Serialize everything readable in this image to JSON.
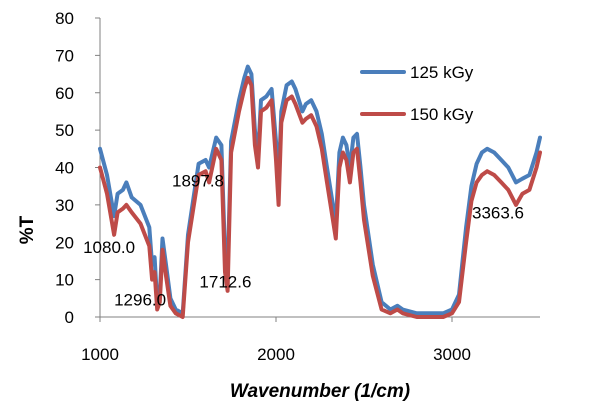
{
  "chart_data": {
    "type": "line",
    "title": "",
    "xlabel": "Wavenumber (1/cm)",
    "ylabel": "%T",
    "xlim": [
      1000,
      3500
    ],
    "ylim": [
      0,
      80
    ],
    "xticks": [
      1000,
      2000,
      3000
    ],
    "yticks": [
      0,
      10,
      20,
      30,
      40,
      50,
      60,
      70,
      80
    ],
    "grid": false,
    "legend_position": "top-right",
    "series": [
      {
        "name": "125 kGy",
        "color": "#4a7ebb",
        "points": [
          [
            1000,
            45
          ],
          [
            1040,
            38
          ],
          [
            1080,
            27
          ],
          [
            1100,
            33
          ],
          [
            1130,
            34
          ],
          [
            1150,
            36
          ],
          [
            1180,
            32
          ],
          [
            1230,
            30
          ],
          [
            1280,
            24
          ],
          [
            1296,
            14
          ],
          [
            1310,
            16
          ],
          [
            1325,
            4
          ],
          [
            1340,
            6
          ],
          [
            1355,
            21
          ],
          [
            1375,
            14
          ],
          [
            1400,
            5
          ],
          [
            1430,
            2
          ],
          [
            1470,
            1
          ],
          [
            1500,
            22
          ],
          [
            1560,
            41
          ],
          [
            1600,
            42
          ],
          [
            1620,
            40
          ],
          [
            1660,
            48
          ],
          [
            1690,
            46
          ],
          [
            1710,
            17
          ],
          [
            1725,
            12
          ],
          [
            1745,
            47
          ],
          [
            1790,
            58
          ],
          [
            1820,
            64
          ],
          [
            1840,
            67
          ],
          [
            1860,
            65
          ],
          [
            1880,
            50
          ],
          [
            1897.8,
            43
          ],
          [
            1915,
            58
          ],
          [
            1945,
            59
          ],
          [
            1975,
            61
          ],
          [
            2000,
            47
          ],
          [
            2015,
            36
          ],
          [
            2030,
            55
          ],
          [
            2060,
            62
          ],
          [
            2090,
            63
          ],
          [
            2110,
            61
          ],
          [
            2150,
            55
          ],
          [
            2170,
            57
          ],
          [
            2200,
            58
          ],
          [
            2230,
            55
          ],
          [
            2260,
            49
          ],
          [
            2290,
            40
          ],
          [
            2320,
            31
          ],
          [
            2340,
            25
          ],
          [
            2360,
            44
          ],
          [
            2380,
            48
          ],
          [
            2400,
            46
          ],
          [
            2420,
            40
          ],
          [
            2440,
            48
          ],
          [
            2460,
            49
          ],
          [
            2480,
            40
          ],
          [
            2500,
            30
          ],
          [
            2550,
            14
          ],
          [
            2600,
            4
          ],
          [
            2650,
            2
          ],
          [
            2690,
            3
          ],
          [
            2720,
            2
          ],
          [
            2800,
            1
          ],
          [
            2880,
            1
          ],
          [
            2950,
            1
          ],
          [
            3000,
            2
          ],
          [
            3040,
            6
          ],
          [
            3080,
            24
          ],
          [
            3110,
            35
          ],
          [
            3140,
            41
          ],
          [
            3170,
            44
          ],
          [
            3200,
            45
          ],
          [
            3240,
            44
          ],
          [
            3280,
            42
          ],
          [
            3320,
            40
          ],
          [
            3363.6,
            36
          ],
          [
            3400,
            37
          ],
          [
            3440,
            38
          ],
          [
            3480,
            44
          ],
          [
            3500,
            48
          ]
        ]
      },
      {
        "name": "150 kGy",
        "color": "#be4b48",
        "points": [
          [
            1000,
            40
          ],
          [
            1040,
            33
          ],
          [
            1080,
            22
          ],
          [
            1100,
            28
          ],
          [
            1130,
            29
          ],
          [
            1150,
            30
          ],
          [
            1180,
            28
          ],
          [
            1230,
            25
          ],
          [
            1280,
            19
          ],
          [
            1296,
            10
          ],
          [
            1310,
            12
          ],
          [
            1325,
            2
          ],
          [
            1340,
            4
          ],
          [
            1355,
            18
          ],
          [
            1375,
            11
          ],
          [
            1400,
            3
          ],
          [
            1430,
            1
          ],
          [
            1470,
            0
          ],
          [
            1500,
            20
          ],
          [
            1560,
            38
          ],
          [
            1600,
            39
          ],
          [
            1620,
            36
          ],
          [
            1660,
            45
          ],
          [
            1690,
            42
          ],
          [
            1710,
            12
          ],
          [
            1725,
            7
          ],
          [
            1745,
            44
          ],
          [
            1790,
            55
          ],
          [
            1820,
            61
          ],
          [
            1840,
            64
          ],
          [
            1860,
            62
          ],
          [
            1880,
            46
          ],
          [
            1897.8,
            40
          ],
          [
            1915,
            55
          ],
          [
            1945,
            56
          ],
          [
            1975,
            58
          ],
          [
            2000,
            42
          ],
          [
            2015,
            30
          ],
          [
            2030,
            52
          ],
          [
            2060,
            58
          ],
          [
            2090,
            59
          ],
          [
            2110,
            57
          ],
          [
            2150,
            52
          ],
          [
            2170,
            53
          ],
          [
            2200,
            54
          ],
          [
            2230,
            51
          ],
          [
            2260,
            45
          ],
          [
            2290,
            36
          ],
          [
            2320,
            27
          ],
          [
            2340,
            21
          ],
          [
            2360,
            40
          ],
          [
            2380,
            44
          ],
          [
            2400,
            42
          ],
          [
            2420,
            36
          ],
          [
            2440,
            44
          ],
          [
            2460,
            45
          ],
          [
            2480,
            36
          ],
          [
            2500,
            26
          ],
          [
            2550,
            11
          ],
          [
            2600,
            2
          ],
          [
            2650,
            1
          ],
          [
            2690,
            2
          ],
          [
            2720,
            1
          ],
          [
            2800,
            0
          ],
          [
            2880,
            0
          ],
          [
            2950,
            0
          ],
          [
            3000,
            1
          ],
          [
            3040,
            4
          ],
          [
            3080,
            20
          ],
          [
            3110,
            31
          ],
          [
            3140,
            36
          ],
          [
            3170,
            38
          ],
          [
            3200,
            39
          ],
          [
            3240,
            38
          ],
          [
            3280,
            36
          ],
          [
            3320,
            34
          ],
          [
            3363.6,
            30
          ],
          [
            3400,
            33
          ],
          [
            3440,
            34
          ],
          [
            3480,
            40
          ],
          [
            3500,
            44
          ]
        ]
      }
    ],
    "annotations": [
      {
        "text": "1080.0",
        "x": 1080,
        "y": 22
      },
      {
        "text": "1296.0",
        "x": 1296,
        "y": 10
      },
      {
        "text": "1712.6",
        "x": 1712.6,
        "y": 17
      },
      {
        "text": "1897.8",
        "x": 1897.8,
        "y": 43
      },
      {
        "text": "3363.6",
        "x": 3363.6,
        "y": 36
      }
    ]
  }
}
